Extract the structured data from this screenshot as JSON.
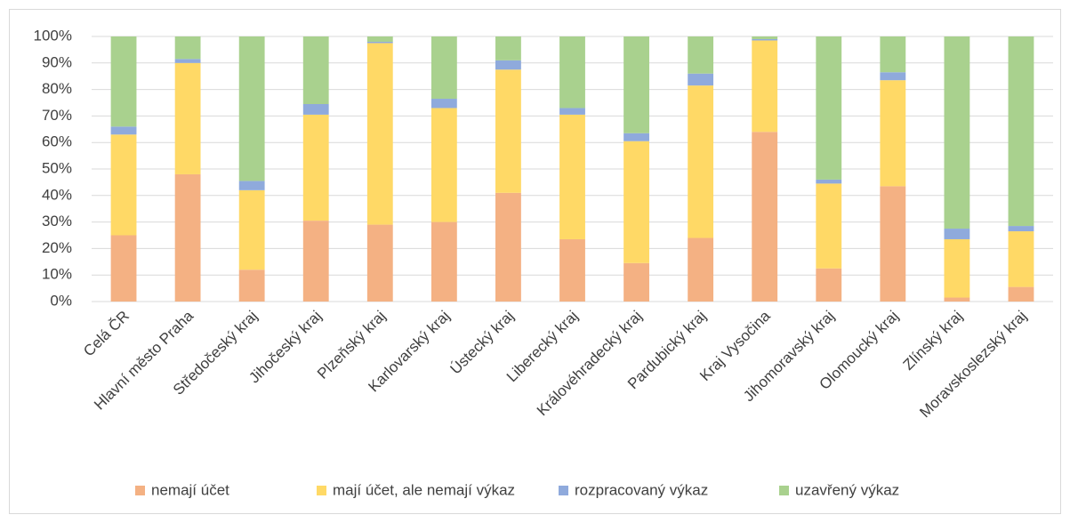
{
  "chart_data": {
    "type": "stacked_bar",
    "categories": [
      "Celá ČR",
      "Hlavní město Praha",
      "Středočeský kraj",
      "Jihočeský kraj",
      "Plzeňský kraj",
      "Karlovarský kraj",
      "Ústecký kraj",
      "Liberecký kraj",
      "Královéhradecký kraj",
      "Pardubický kraj",
      "Kraj Vysočina",
      "Jihomoravský kraj",
      "Olomoucký kraj",
      "Zlínský kraj",
      "Moravskoslezský kraj"
    ],
    "series": [
      {
        "name": "nemají účet",
        "color": "#f4b183",
        "values": [
          25,
          48,
          12,
          30.5,
          29,
          30,
          41,
          23.5,
          14.5,
          24,
          64,
          12.5,
          43.5,
          1.5,
          5.5
        ]
      },
      {
        "name": "mají účet, ale nemají výkaz",
        "color": "#ffd966",
        "values": [
          38,
          42,
          30,
          40,
          68.5,
          43,
          46.5,
          47,
          46,
          57.5,
          34.5,
          32,
          40,
          22,
          21
        ]
      },
      {
        "name": "rozpracovaný výkaz",
        "color": "#8faadc",
        "values": [
          3,
          1.5,
          3.5,
          4,
          0.5,
          3.5,
          3.5,
          2.5,
          3,
          4.5,
          0.5,
          1.5,
          3,
          4,
          2
        ]
      },
      {
        "name": "uzavřený výkaz",
        "color": "#a9d18e",
        "values": [
          34,
          8.5,
          54.5,
          25.5,
          2,
          23.5,
          9,
          27,
          36.5,
          14,
          1,
          54,
          13.5,
          72.5,
          71.5
        ]
      }
    ],
    "ylim": [
      0,
      100
    ],
    "yticks": [
      {
        "value": 0,
        "label": "0%"
      },
      {
        "value": 10,
        "label": "10%"
      },
      {
        "value": 20,
        "label": "20%"
      },
      {
        "value": 30,
        "label": "30%"
      },
      {
        "value": 40,
        "label": "40%"
      },
      {
        "value": 50,
        "label": "50%"
      },
      {
        "value": 60,
        "label": "60%"
      },
      {
        "value": 70,
        "label": "70%"
      },
      {
        "value": 80,
        "label": "80%"
      },
      {
        "value": 90,
        "label": "90%"
      },
      {
        "value": 100,
        "label": "100%"
      }
    ],
    "grid": true,
    "legend": "bottom"
  }
}
